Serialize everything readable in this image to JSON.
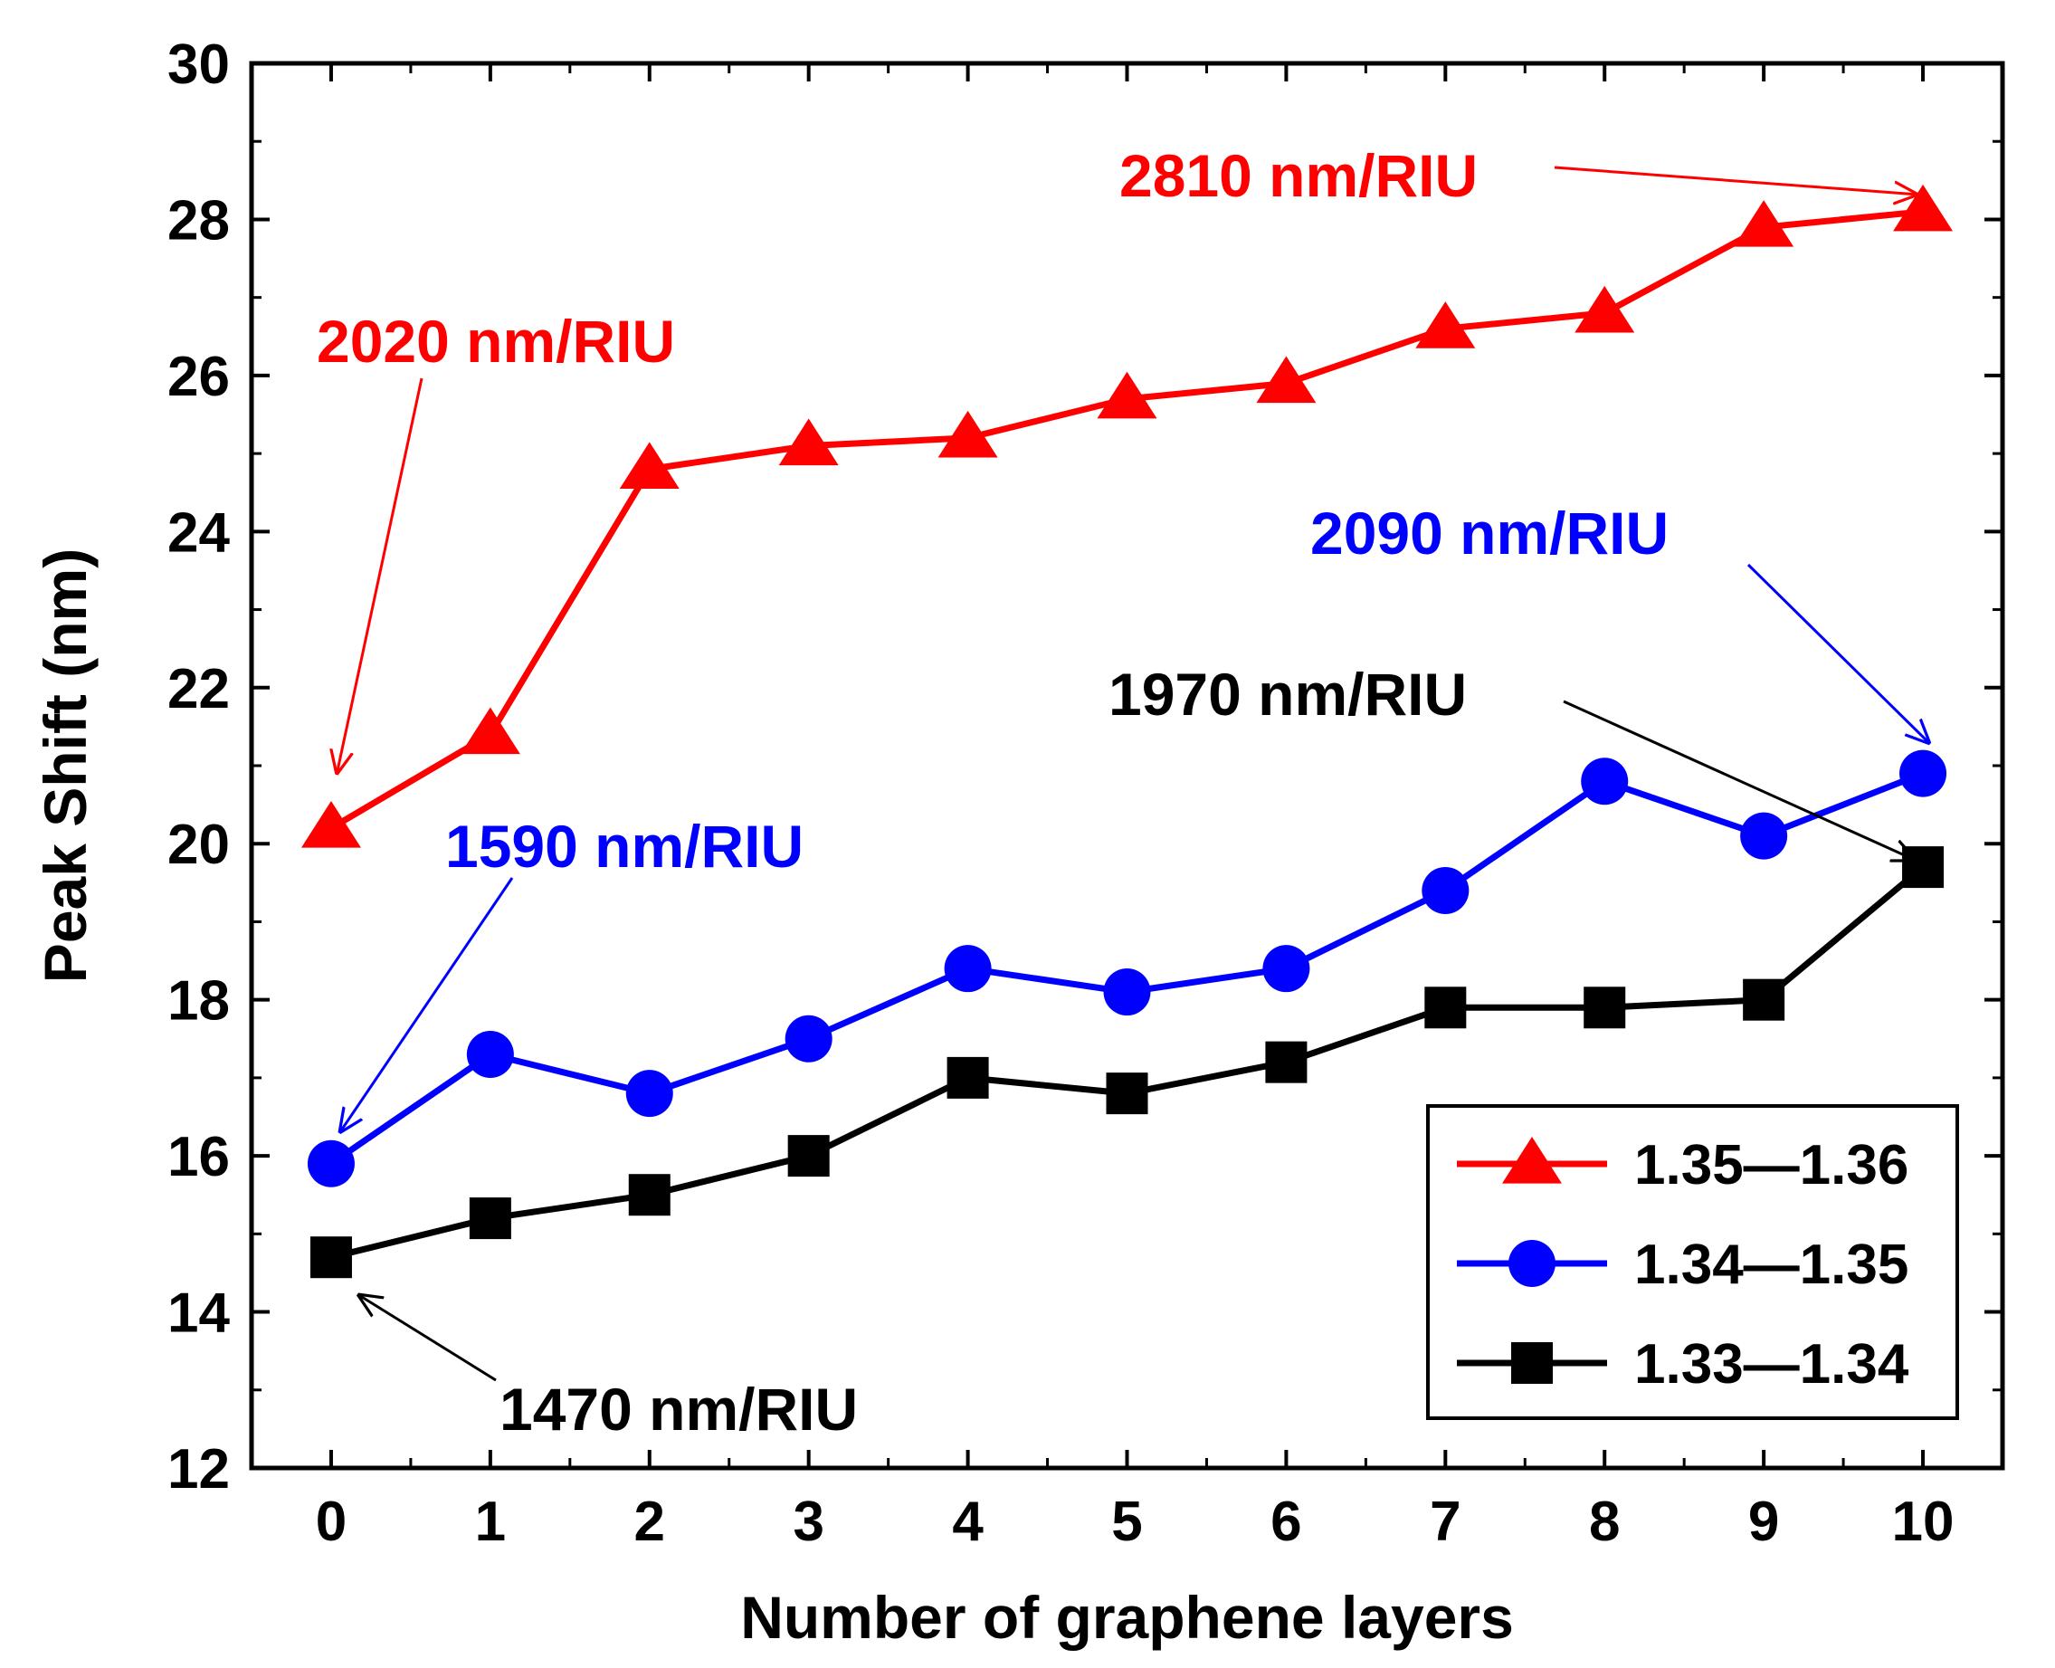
{
  "chart_data": {
    "type": "line",
    "title": "",
    "xlabel": "Number of graphene layers",
    "ylabel": "Peak Shift (nm)",
    "xlim": [
      -0.5,
      10.5
    ],
    "ylim": [
      12,
      30
    ],
    "x": [
      0,
      1,
      2,
      3,
      4,
      5,
      6,
      7,
      8,
      9,
      10
    ],
    "x_ticks": [
      "0",
      "1",
      "2",
      "3",
      "4",
      "5",
      "6",
      "7",
      "8",
      "9",
      "10"
    ],
    "y_ticks": [
      "12",
      "14",
      "16",
      "18",
      "20",
      "22",
      "24",
      "26",
      "28",
      "30"
    ],
    "grid": false,
    "legend_position": "bottom-right",
    "series": [
      {
        "name": "1.35—1.36",
        "marker": "triangle",
        "color": "#ff0000",
        "values": [
          20.2,
          21.4,
          24.8,
          25.1,
          25.2,
          25.7,
          25.9,
          26.6,
          26.8,
          27.9,
          28.1
        ]
      },
      {
        "name": "1.34—1.35",
        "marker": "circle",
        "color": "#0000ff",
        "values": [
          15.9,
          17.3,
          16.8,
          17.5,
          18.4,
          18.1,
          18.4,
          19.4,
          20.8,
          20.1,
          20.9
        ]
      },
      {
        "name": "1.33—1.34",
        "marker": "square",
        "color": "#000000",
        "values": [
          14.7,
          15.2,
          15.5,
          16.0,
          17.0,
          16.8,
          17.2,
          17.9,
          17.9,
          18.0,
          19.7
        ]
      }
    ],
    "annotations": [
      {
        "name": "annotation-2810",
        "text": "2810 nm/RIU",
        "color": "#ff0000",
        "points_to": {
          "x": 10,
          "y": 28.1
        }
      },
      {
        "name": "annotation-2020",
        "text": "2020 nm/RIU",
        "color": "#ff0000",
        "points_to": {
          "x": 0,
          "y": 20.2
        }
      },
      {
        "name": "annotation-2090",
        "text": "2090 nm/RIU",
        "color": "#0000ff",
        "points_to": {
          "x": 10,
          "y": 20.9
        }
      },
      {
        "name": "annotation-1970",
        "text": "1970 nm/RIU",
        "color": "#000000",
        "points_to": {
          "x": 10,
          "y": 19.7
        }
      },
      {
        "name": "annotation-1590",
        "text": "1590 nm/RIU",
        "color": "#0000ff",
        "points_to": {
          "x": 0,
          "y": 15.9
        }
      },
      {
        "name": "annotation-1470",
        "text": "1470 nm/RIU",
        "color": "#000000",
        "points_to": {
          "x": 0,
          "y": 14.7
        }
      }
    ]
  }
}
